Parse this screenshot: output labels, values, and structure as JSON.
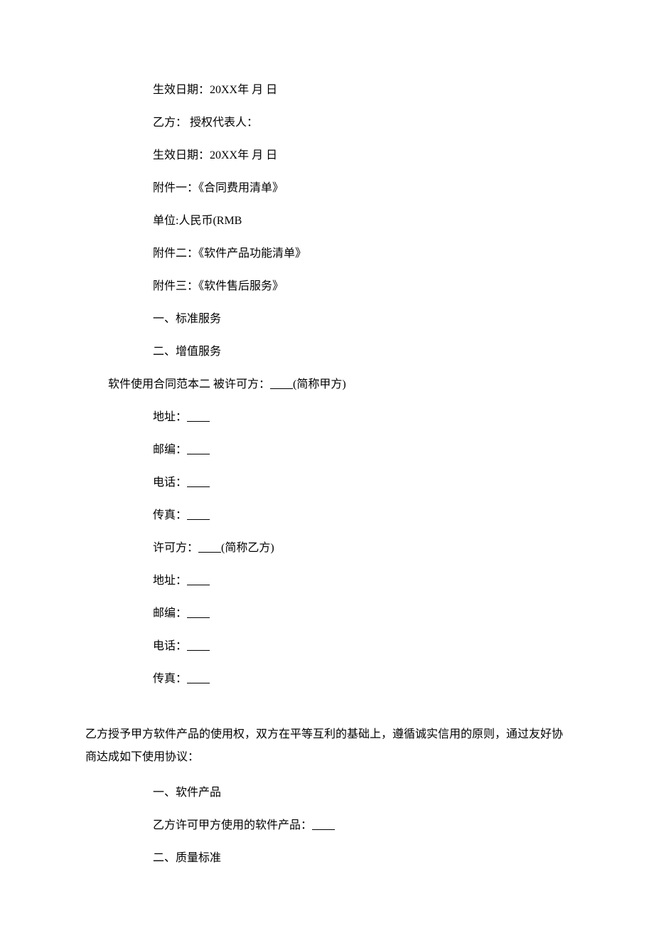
{
  "lines": {
    "l1": "生效日期：20XX年 月 日",
    "l2": "乙方： 授权代表人：",
    "l3": "生效日期：20XX年 月 日",
    "l4": "附件一：《合同费用清单》",
    "l5": "单位:人民币(RMB",
    "l6": "附件二：《软件产品功能清单》",
    "l7": "附件三：《软件售后服务》",
    "l8": "一、标准服务",
    "l9": "二、增值服务",
    "l10_a": "软件使用合同范本二",
    "l10_b": "被许可方：",
    "l10_c": "(简称甲方)",
    "l11": "地址：",
    "l12": "邮编：",
    "l13": "电话：",
    "l14": "传真：",
    "l15_a": "许可方：",
    "l15_b": "(简称乙方)",
    "l16": "地址：",
    "l17": "邮编：",
    "l18": "电话：",
    "l19": "传真：",
    "para": "乙方授予甲方软件产品的使用权，双方在平等互利的基础上，遵循诚实信用的原则，通过友好协商达成如下使用协议：",
    "l20": "一、软件产品",
    "l21": "乙方许可甲方使用的软件产品：",
    "l22": "二、质量标准"
  },
  "blank_text": "        ",
  "spacer_text": "    "
}
